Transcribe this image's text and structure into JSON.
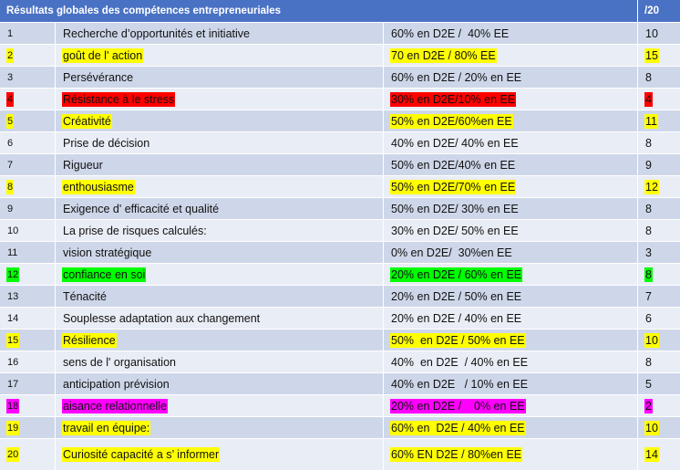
{
  "header": {
    "title": "Résultats globales des compétences entrepreneuriales",
    "score_header": "/20"
  },
  "colors": {
    "header_bg": "#4a72c4",
    "row_band_odd": "#ced7e9",
    "row_band_even": "#e9edf5",
    "highlight_yellow": "#ffff00",
    "highlight_red": "#ff0000",
    "highlight_green": "#00ff00",
    "highlight_magenta": "#ff00ff"
  },
  "rows": [
    {
      "num": "1",
      "competence": "Recherche d’opportunités et initiative",
      "result": "60% en D2E /  40% EE",
      "score": "10",
      "highlight": ""
    },
    {
      "num": "2",
      "competence": "goût de l' action",
      "result": "70 en D2E / 80% EE",
      "score": "15",
      "highlight": "yellow"
    },
    {
      "num": "3",
      "competence": "Persévérance",
      "result": "60% en D2E / 20% en EE",
      "score": "8",
      "highlight": ""
    },
    {
      "num": "4",
      "competence": "Résistance à le stress",
      "result": "30% en D2E/10% en EE",
      "score": "4",
      "highlight": "red"
    },
    {
      "num": "5",
      "competence": "Créativité",
      "result": "50% en D2E/60%en EE",
      "score": "11",
      "highlight": "yellow"
    },
    {
      "num": "6",
      "competence": "Prise de décision",
      "result": "40% en D2E/ 40% en EE",
      "score": "8",
      "highlight": ""
    },
    {
      "num": "7",
      "competence": "Rigueur",
      "result": "50% en D2E/40% en EE",
      "score": "9",
      "highlight": ""
    },
    {
      "num": "8",
      "competence": "enthousiasme",
      "result": "50% en D2E/70% en EE",
      "score": "12",
      "highlight": "yellow"
    },
    {
      "num": "9",
      "competence": "Exigence d' efficacité et qualité",
      "result": "50% en D2E/ 30% en EE",
      "score": "8",
      "highlight": ""
    },
    {
      "num": "10",
      "competence": "La prise de risques calculés:",
      "result": "30% en D2E/ 50% en EE",
      "score": "8",
      "highlight": ""
    },
    {
      "num": "11",
      "competence": "vision stratégique",
      "result": "0% en D2E/  30%en EE",
      "score": "3",
      "highlight": ""
    },
    {
      "num": "12",
      "competence": "confiance en soi",
      "result": "20% en D2E / 60% en EE",
      "score": "8",
      "highlight": "green"
    },
    {
      "num": "13",
      "competence": "Ténacité",
      "result": "20% en D2E / 50% en EE",
      "score": "7",
      "highlight": ""
    },
    {
      "num": "14",
      "competence": "Souplesse adaptation aux changement",
      "result": "20% en D2E / 40% en EE",
      "score": "6",
      "highlight": ""
    },
    {
      "num": "15",
      "competence": "Résilience",
      "result": "50%  en D2E / 50% en EE",
      "score": "10",
      "highlight": "yellow"
    },
    {
      "num": "16",
      "competence": "sens de l' organisation",
      "result": "40%  en D2E  / 40% en EE",
      "score": "8",
      "highlight": ""
    },
    {
      "num": "17",
      "competence": "anticipation prévision",
      "result": "40% en D2E   / 10% en EE",
      "score": "5",
      "highlight": ""
    },
    {
      "num": "18",
      "competence": "aisance relationnelle",
      "result": "20% en D2E /    0% en EE",
      "score": "2",
      "highlight": "magenta"
    },
    {
      "num": "19",
      "competence": "travail en équipe:",
      "result": "60% en  D2E / 40% en EE",
      "score": "10",
      "highlight": "yellow"
    },
    {
      "num": "20",
      "competence": "Curiosité capacité a s’ informer",
      "result": "60% EN D2E / 80%en EE",
      "score": "14",
      "highlight": "yellow"
    }
  ]
}
